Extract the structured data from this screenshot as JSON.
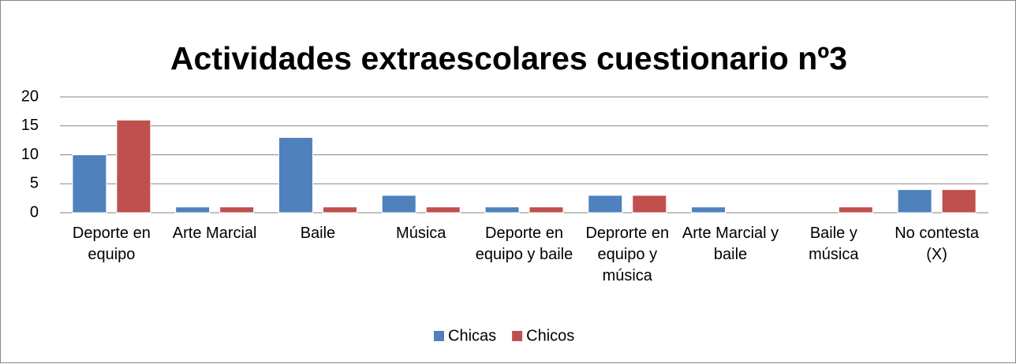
{
  "chart_data": {
    "type": "bar",
    "title": "Actividades extraescolares cuestionario nº3",
    "categories": [
      "Deporte en equipo",
      "Arte Marcial",
      "Baile",
      "Música",
      "Deporte en equipo y baile",
      "Deprorte en equipo y música",
      "Arte Marcial y baile",
      "Baile y música",
      "No contesta (X)"
    ],
    "series": [
      {
        "name": "Chicas",
        "color": "#4f81bd",
        "values": [
          10,
          1,
          13,
          3,
          1,
          3,
          1,
          0,
          4
        ]
      },
      {
        "name": "Chicos",
        "color": "#c0504d",
        "values": [
          16,
          1,
          1,
          1,
          1,
          3,
          0,
          1,
          4
        ]
      }
    ],
    "ylim": [
      0,
      20
    ],
    "yticks": [
      0,
      5,
      10,
      15,
      20
    ],
    "grid": true,
    "legend": "bottom"
  }
}
